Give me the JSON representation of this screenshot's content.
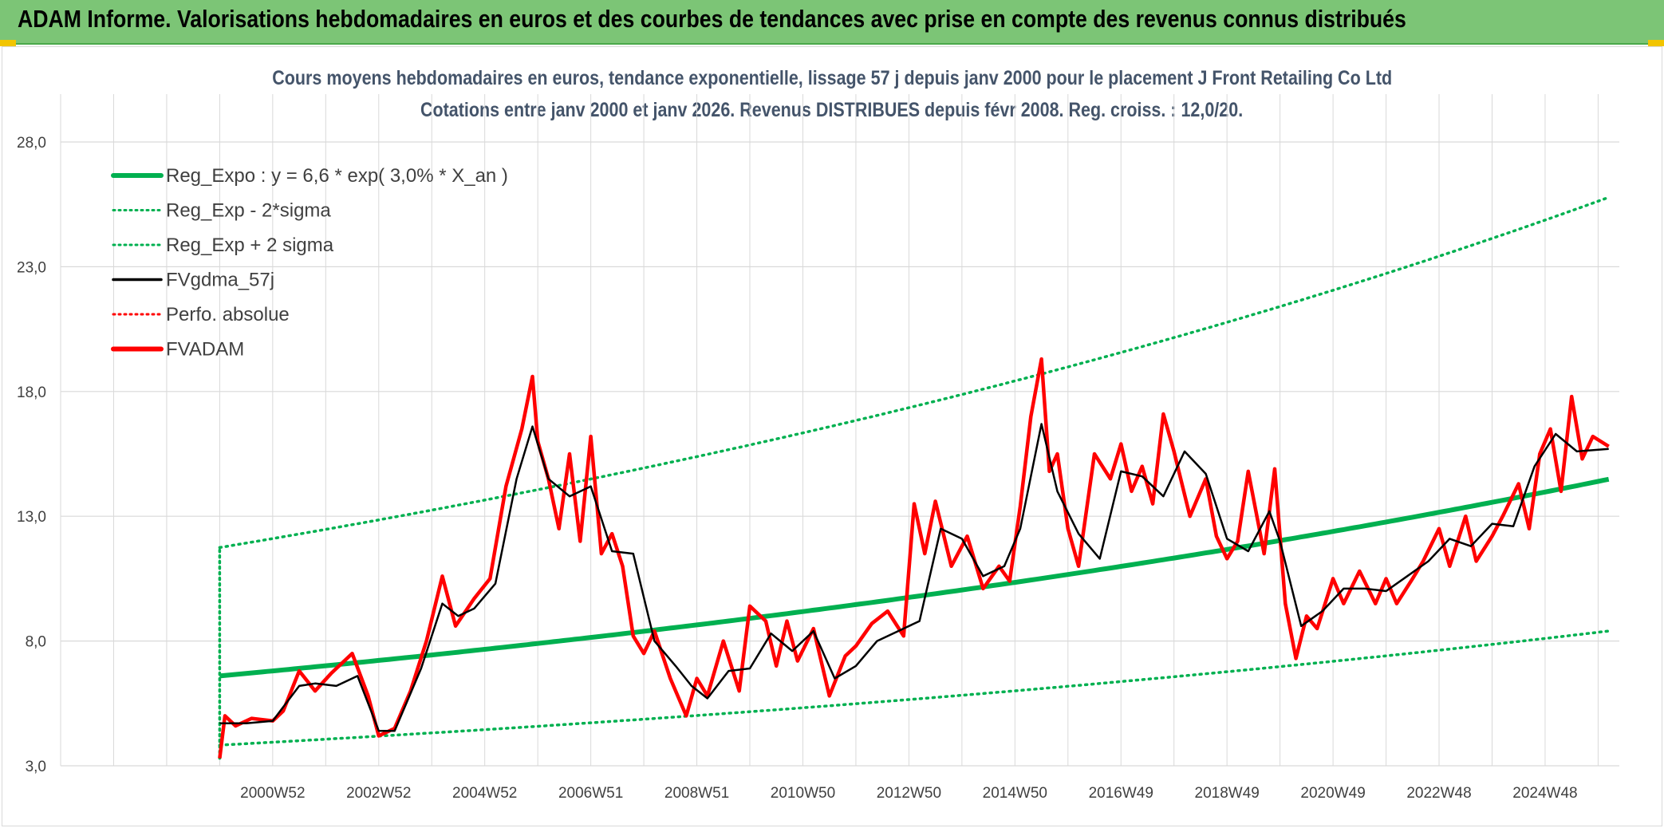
{
  "banner": {
    "title": "ADAM Informe. Valorisations hebdomadaires en euros et des courbes de tendances avec prise en compte des revenus connus distribués"
  },
  "colors": {
    "banner": "#7cc576",
    "reg": "#00b050",
    "fvgdma": "#000000",
    "fvadam": "#ff0000",
    "grid": "#d9d9d9",
    "title": "#44546a"
  },
  "chart_data": {
    "type": "line",
    "title": "Cours moyens hebdomadaires en euros, tendance exponentielle, lissage 57 j depuis janv 2000 pour le placement J Front Retailing Co Ltd",
    "subtitle": "Cotations entre janv 2000 et janv 2026. Revenus DISTRIBUES depuis févr 2008. Reg. croiss. : 12,0/20.",
    "xlabel": "",
    "ylabel": "",
    "ylim": [
      3.0,
      28.0
    ],
    "yticks": [
      3.0,
      8.0,
      13.0,
      18.0,
      23.0,
      28.0
    ],
    "ytick_labels": [
      "3,0",
      "8,0",
      "13,0",
      "18,0",
      "23,0",
      "28,0"
    ],
    "xlim": [
      1997.0,
      2026.4
    ],
    "xticks": [
      2001.0,
      2003.0,
      2005.0,
      2007.0,
      2009.0,
      2011.0,
      2013.0,
      2015.0,
      2017.0,
      2019.0,
      2021.0,
      2023.0,
      2025.0
    ],
    "xtick_labels": [
      "2000W52",
      "2002W52",
      "2004W52",
      "2006W51",
      "2008W51",
      "2010W50",
      "2012W50",
      "2014W50",
      "2016W49",
      "2018W49",
      "2020W49",
      "2022W48",
      "2024W48"
    ],
    "grid": true,
    "legend_position": "top-left",
    "regression": {
      "formula": "y = 6,6 * exp( 3,0% *  X_an )",
      "a": 6.6,
      "rate": 0.03,
      "start_year": 2000.0,
      "end_year": 2026.2,
      "sigma_low_factor": 0.58,
      "sigma_high_factor": 1.78
    },
    "series": [
      {
        "name": "Reg_Expo : y = 6,6 * exp( 3,0% *  X_an )",
        "style": "solid-thick",
        "color": "#00b050"
      },
      {
        "name": "Reg_Exp - 2*sigma",
        "style": "dotted",
        "color": "#00b050"
      },
      {
        "name": "Reg_Exp + 2 sigma",
        "style": "dotted",
        "color": "#00b050"
      },
      {
        "name": "FVgdma_57j",
        "style": "solid",
        "color": "#000000",
        "x": [
          2000.0,
          2000.5,
          2001.0,
          2001.5,
          2001.8,
          2002.2,
          2002.6,
          2003.0,
          2003.3,
          2003.8,
          2004.2,
          2004.5,
          2004.8,
          2005.2,
          2005.6,
          2005.9,
          2006.2,
          2006.6,
          2007.0,
          2007.4,
          2007.8,
          2008.2,
          2008.6,
          2008.9,
          2009.2,
          2009.6,
          2010.0,
          2010.4,
          2010.8,
          2011.2,
          2011.6,
          2012.0,
          2012.4,
          2012.8,
          2013.2,
          2013.6,
          2014.0,
          2014.4,
          2014.8,
          2015.1,
          2015.5,
          2015.8,
          2016.2,
          2016.6,
          2017.0,
          2017.4,
          2017.8,
          2018.2,
          2018.6,
          2019.0,
          2019.4,
          2019.8,
          2020.0,
          2020.4,
          2020.8,
          2021.2,
          2021.6,
          2022.0,
          2022.4,
          2022.8,
          2023.2,
          2023.6,
          2024.0,
          2024.4,
          2024.8,
          2025.2,
          2025.6,
          2026.2
        ],
        "values": [
          4.7,
          4.7,
          4.8,
          6.2,
          6.3,
          6.2,
          6.6,
          4.4,
          4.4,
          6.9,
          9.5,
          9.0,
          9.3,
          10.3,
          14.5,
          16.6,
          14.5,
          13.8,
          14.2,
          11.6,
          11.5,
          8.0,
          7.0,
          6.2,
          5.7,
          6.8,
          6.9,
          8.3,
          7.6,
          8.4,
          6.5,
          7.0,
          8.0,
          8.4,
          8.8,
          12.5,
          12.1,
          10.6,
          11.0,
          12.5,
          16.7,
          14.0,
          12.3,
          11.3,
          14.8,
          14.6,
          13.8,
          15.6,
          14.7,
          12.1,
          11.6,
          13.2,
          12.0,
          8.6,
          9.2,
          10.1,
          10.1,
          10.0,
          10.6,
          11.2,
          12.1,
          11.8,
          12.7,
          12.6,
          15.0,
          16.3,
          15.6,
          15.7
        ]
      },
      {
        "name": "Perfo. absolue",
        "style": "dotted",
        "color": "#ff0000"
      },
      {
        "name": "FVADAM",
        "style": "solid-thick",
        "color": "#ff0000",
        "x": [
          2000.0,
          2000.1,
          2000.3,
          2000.6,
          2001.0,
          2001.2,
          2001.5,
          2001.8,
          2002.1,
          2002.5,
          2002.8,
          2003.0,
          2003.3,
          2003.6,
          2003.9,
          2004.2,
          2004.45,
          2004.8,
          2005.1,
          2005.4,
          2005.7,
          2005.9,
          2006.0,
          2006.2,
          2006.4,
          2006.6,
          2006.8,
          2007.0,
          2007.2,
          2007.4,
          2007.6,
          2007.8,
          2008.0,
          2008.2,
          2008.5,
          2008.8,
          2009.0,
          2009.2,
          2009.5,
          2009.8,
          2010.0,
          2010.3,
          2010.5,
          2010.7,
          2010.9,
          2011.2,
          2011.5,
          2011.8,
          2012.0,
          2012.3,
          2012.6,
          2012.9,
          2013.1,
          2013.3,
          2013.5,
          2013.8,
          2014.1,
          2014.4,
          2014.7,
          2014.9,
          2015.1,
          2015.3,
          2015.5,
          2015.65,
          2015.8,
          2016.0,
          2016.2,
          2016.5,
          2016.8,
          2017.0,
          2017.2,
          2017.4,
          2017.6,
          2017.8,
          2018.0,
          2018.3,
          2018.6,
          2018.8,
          2019.0,
          2019.2,
          2019.4,
          2019.7,
          2019.9,
          2020.1,
          2020.3,
          2020.5,
          2020.7,
          2021.0,
          2021.2,
          2021.5,
          2021.8,
          2022.0,
          2022.2,
          2022.5,
          2022.7,
          2023.0,
          2023.2,
          2023.5,
          2023.7,
          2024.0,
          2024.2,
          2024.5,
          2024.7,
          2024.9,
          2025.1,
          2025.3,
          2025.5,
          2025.7,
          2025.9,
          2026.2
        ],
        "values": [
          3.3,
          5.0,
          4.6,
          4.9,
          4.8,
          5.2,
          6.8,
          6.0,
          6.7,
          7.5,
          5.8,
          4.2,
          4.5,
          6.0,
          8.0,
          10.6,
          8.6,
          9.7,
          10.5,
          14.2,
          16.5,
          18.6,
          16.0,
          14.5,
          12.5,
          15.5,
          12.0,
          16.2,
          11.5,
          12.3,
          11.0,
          8.2,
          7.5,
          8.4,
          6.5,
          5.0,
          6.5,
          5.8,
          8.0,
          6.0,
          9.4,
          8.8,
          7.0,
          8.8,
          7.2,
          8.5,
          5.8,
          7.4,
          7.8,
          8.7,
          9.2,
          8.2,
          13.5,
          11.5,
          13.6,
          11.0,
          12.2,
          10.1,
          11.0,
          10.4,
          13.4,
          17.0,
          19.3,
          14.8,
          15.5,
          12.5,
          11.0,
          15.5,
          14.5,
          15.9,
          14.0,
          15.0,
          13.5,
          17.1,
          15.6,
          13.0,
          14.5,
          12.2,
          11.3,
          12.0,
          14.8,
          11.5,
          14.9,
          9.5,
          7.3,
          9.0,
          8.5,
          10.5,
          9.5,
          10.8,
          9.5,
          10.5,
          9.5,
          10.5,
          11.2,
          12.5,
          11.0,
          13.0,
          11.2,
          12.2,
          13.0,
          14.3,
          12.5,
          15.5,
          16.5,
          14.0,
          17.8,
          15.3,
          16.2,
          15.8
        ]
      }
    ]
  }
}
